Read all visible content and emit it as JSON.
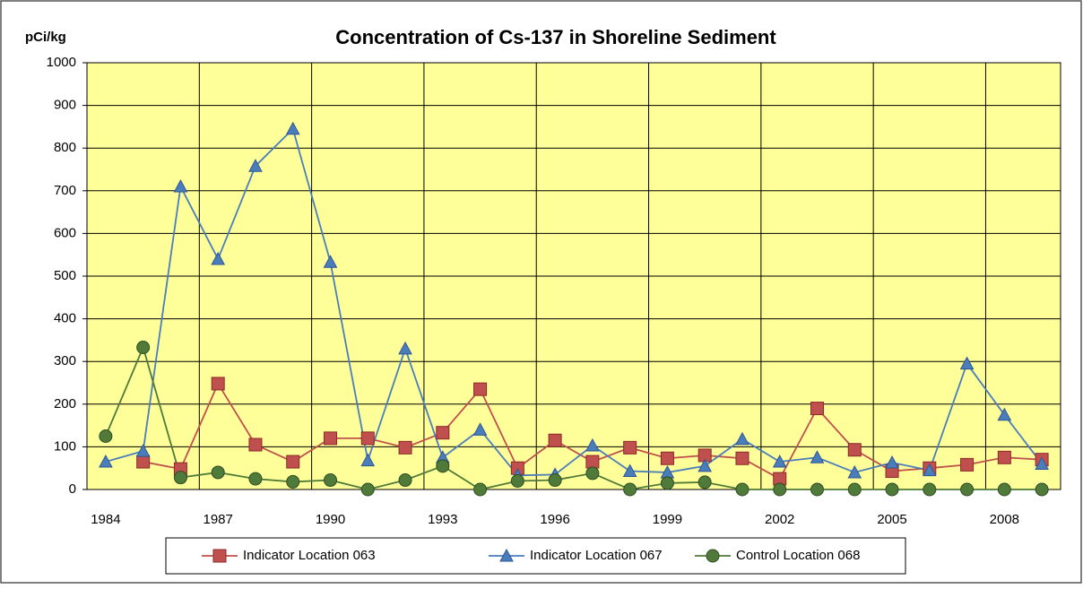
{
  "chart_data": {
    "type": "line",
    "title": "Concentration of Cs-137 in Shoreline Sediment",
    "y_label": "pCi/kg",
    "categories": [
      "1984",
      null,
      null,
      "1987",
      null,
      null,
      "1990",
      null,
      null,
      "1993",
      null,
      null,
      "1996",
      null,
      null,
      "1999",
      null,
      null,
      "2002",
      null,
      null,
      "2005",
      null,
      null,
      "2008",
      null
    ],
    "series": [
      {
        "name": "Indicator Location 063",
        "color": "#c0504d",
        "marker": "square",
        "values": [
          null,
          65,
          48,
          248,
          105,
          65,
          120,
          120,
          98,
          133,
          235,
          50,
          115,
          65,
          98,
          73,
          80,
          73,
          25,
          190,
          93,
          43,
          50,
          58,
          75,
          70
        ]
      },
      {
        "name": "Indicator Location 067",
        "color": "#4a7ebb",
        "marker": "triangle",
        "values": [
          65,
          90,
          710,
          540,
          758,
          845,
          533,
          68,
          330,
          75,
          140,
          33,
          35,
          103,
          43,
          40,
          55,
          118,
          65,
          75,
          40,
          63,
          45,
          295,
          175,
          60
        ]
      },
      {
        "name": "Control Location 068",
        "color": "#4f7a3a",
        "marker": "circle",
        "values": [
          125,
          333,
          28,
          40,
          25,
          18,
          22,
          0,
          22,
          55,
          0,
          20,
          22,
          38,
          0,
          15,
          17,
          0,
          0,
          0,
          0,
          0,
          0,
          0,
          0,
          0
        ]
      }
    ],
    "ylim": [
      0,
      1000
    ],
    "yticks": [
      0,
      100,
      200,
      300,
      400,
      500,
      600,
      700,
      800,
      900,
      1000
    ],
    "grid": true,
    "legend": "bottom",
    "plot_color": "#ffff99"
  }
}
